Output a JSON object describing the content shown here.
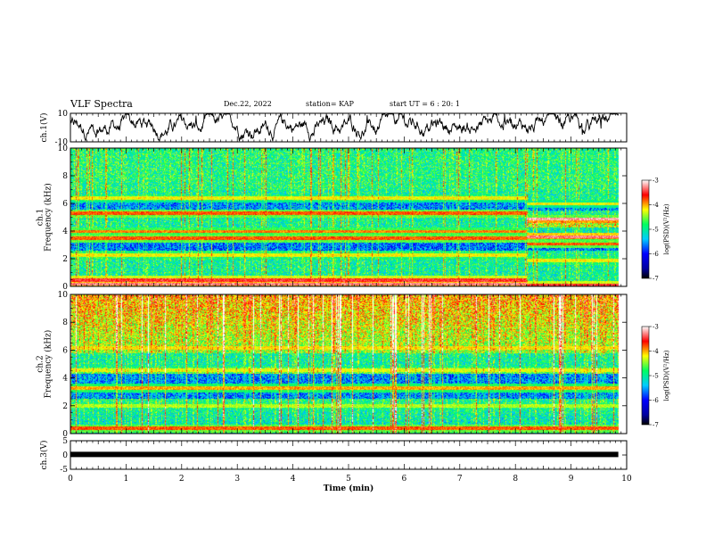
{
  "header": {
    "title": "VLF Spectra",
    "date": "Dec.22, 2022",
    "station": "station= KAP",
    "start": "start  UT =   6 : 20: 1"
  },
  "chart_data": [
    {
      "type": "line",
      "ylabel": "ch.1(V)",
      "ylim": [
        -10,
        10
      ],
      "yticks": [
        "10",
        "-10"
      ],
      "xlim": [
        0,
        10
      ],
      "series": [
        {
          "approx_mean": 0,
          "approx_range": [
            -8,
            10
          ]
        }
      ]
    },
    {
      "type": "heatmap",
      "ylabel_top": "ch.1",
      "ylabel": "Frequency (kHz)",
      "ylim": [
        0,
        10
      ],
      "yticks": [
        "0",
        "2",
        "4",
        "6",
        "8",
        "10"
      ],
      "xlim": [
        0,
        10
      ],
      "data_end_min": 9.85,
      "colorbar": {
        "label": "log(PSD)(V²/Hz)",
        "range": [
          -7,
          -3
        ],
        "ticks": [
          "-3",
          "-4",
          "-5",
          "-6",
          "-7"
        ]
      },
      "bands_khz": [
        {
          "f": 5.3,
          "level": -3.8
        },
        {
          "f": 4.0,
          "level": -3.9
        },
        {
          "f": 3.5,
          "level": -3.8
        },
        {
          "f": 2.3,
          "level": -4.2
        },
        {
          "f": 6.4,
          "level": -4.2
        },
        {
          "f": 0.5,
          "level": -3.5
        },
        {
          "f": 0.2,
          "level": -3.3
        }
      ],
      "annotation": "band structure changes at ~8.2 min"
    },
    {
      "type": "heatmap",
      "ylabel_top": "ch.2",
      "ylabel": "Frequency (kHz)",
      "ylim": [
        0,
        10
      ],
      "yticks": [
        "0",
        "2",
        "4",
        "6",
        "8",
        "10"
      ],
      "xlim": [
        0,
        10
      ],
      "data_end_min": 9.85,
      "colorbar": {
        "label": "log(PSD)(V²/Hz)",
        "range": [
          -7,
          -3
        ],
        "ticks": [
          "-3",
          "-4",
          "-5",
          "-6",
          "-7"
        ]
      },
      "bands_khz": [
        {
          "f": 6.2,
          "level": -4.2
        },
        {
          "f": 4.6,
          "level": -4.3
        },
        {
          "f": 3.3,
          "level": -4.0
        },
        {
          "f": 2.0,
          "level": -4.4
        },
        {
          "f": 0.4,
          "level": -3.8
        }
      ]
    },
    {
      "type": "line",
      "ylabel": "ch.3(V)",
      "ylim": [
        -5,
        5
      ],
      "yticks": [
        "5",
        "0",
        "-5"
      ],
      "xlim": [
        0,
        10
      ],
      "xlabel": "Time (min)",
      "xticks": [
        "0",
        "1",
        "2",
        "3",
        "4",
        "5",
        "6",
        "7",
        "8",
        "9",
        "10"
      ],
      "series": [
        {
          "approx_value": 0.2,
          "note": "thick constant trace"
        }
      ]
    }
  ]
}
